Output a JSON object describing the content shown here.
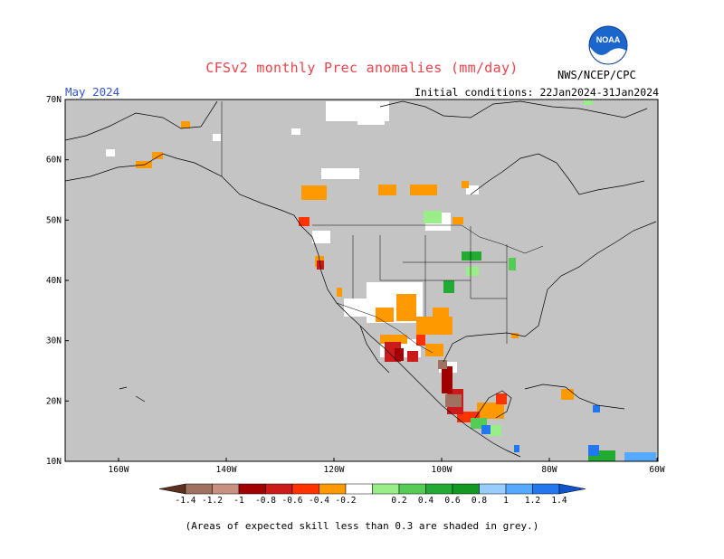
{
  "header": {
    "title": "CFSv2 monthly Prec anomalies (mm/day)",
    "month": "May 2024",
    "initial_conditions": "Initial conditions: 22Jan2024-31Jan2024",
    "agency": "NWS/NCEP/CPC",
    "logo_text": "NOAA"
  },
  "axes": {
    "lat_labels": [
      "70N",
      "60N",
      "50N",
      "40N",
      "30N",
      "20N",
      "10N"
    ],
    "lon_labels": [
      "160W",
      "140W",
      "120W",
      "100W",
      "80W",
      "60W"
    ]
  },
  "colorbar": {
    "labels": [
      "-1.4",
      "-1.2",
      "-1",
      "-0.8",
      "-0.6",
      "-0.4",
      "-0.2",
      "0.2",
      "0.4",
      "0.6",
      "0.8",
      "1",
      "1.2",
      "1.4"
    ],
    "colors": [
      "#7a4a3a",
      "#a07060",
      "#c89080",
      "#a00000",
      "#cc1a1a",
      "#ff3300",
      "#ff9900",
      "#ffffff",
      "#99ee88",
      "#55cc55",
      "#22aa33",
      "#119922",
      "#99ccff",
      "#55aaff",
      "#2277ee",
      "#1155cc"
    ]
  },
  "footnote": "(Areas of expected skill less than 0.3 are shaded in grey.)"
}
